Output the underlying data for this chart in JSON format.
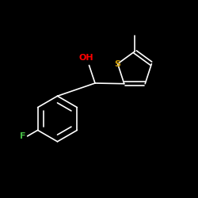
{
  "background_color": "#000000",
  "bond_color": "#ffffff",
  "oh_color": "#ff0000",
  "s_color": "#cc9900",
  "f_color": "#44bb44",
  "bond_lw": 1.2,
  "figsize": [
    2.5,
    2.5
  ],
  "dpi": 100,
  "xlim": [
    0,
    10
  ],
  "ylim": [
    0,
    10
  ],
  "oh_fontsize": 8,
  "s_fontsize": 8,
  "f_fontsize": 8
}
